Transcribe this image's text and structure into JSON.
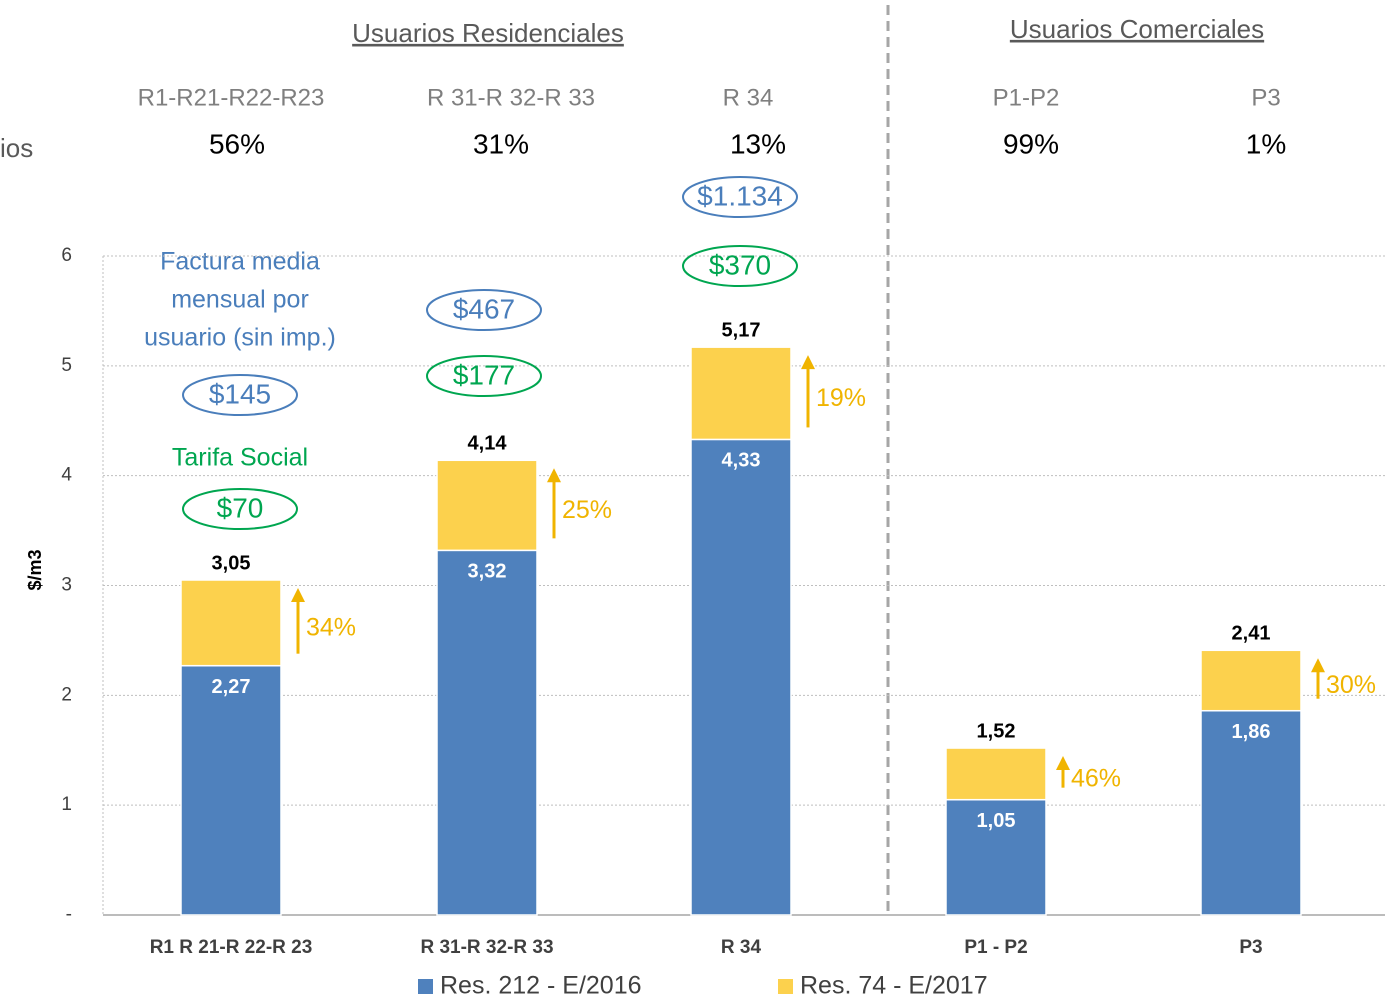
{
  "chart_data": {
    "type": "stacked_bar",
    "group_titles": [
      "Usuarios Residenciales",
      "Usuarios Comerciales"
    ],
    "side_label": "ios",
    "subgroups": [
      "R1-R21-R22-R23",
      "R 31-R 32-R 33",
      "R 34",
      "P1-P2",
      "P3"
    ],
    "shares": [
      "56%",
      "31%",
      "13%",
      "99%",
      "1%"
    ],
    "invoice_title": [
      "Factura media",
      "mensual por",
      "usuario (sin imp.)"
    ],
    "invoice_labels": [
      "$145",
      "$467",
      "$1.134"
    ],
    "social_title": "Tarifa Social",
    "social_labels": [
      "$70",
      "$177",
      "$370"
    ],
    "categories": [
      "R1 R 21-R 22-R 23",
      "R 31-R 32-R 33",
      "R 34",
      "P1 - P2",
      "P3"
    ],
    "series": [
      {
        "name": "Res. 212 - E/2016",
        "color": "#4f81bd",
        "values": [
          2.27,
          3.32,
          4.33,
          1.05,
          1.86
        ],
        "value_labels": [
          "2,27",
          "3,32",
          "4,33",
          "1,05",
          "1,86"
        ]
      },
      {
        "name": "Res. 74 - E/2017",
        "color": "#fcd14d",
        "values": [
          0.78,
          0.82,
          0.84,
          0.47,
          0.55
        ]
      }
    ],
    "totals": [
      3.05,
      4.14,
      5.17,
      1.52,
      2.41
    ],
    "total_labels": [
      "3,05",
      "4,14",
      "5,17",
      "1,52",
      "2,41"
    ],
    "change_labels": [
      "34%",
      "25%",
      "19%",
      "46%",
      "30%"
    ],
    "ylabel": "$/m3",
    "ylim": [
      0,
      6
    ],
    "yticks": [
      {
        "value": 0,
        "label": "-"
      },
      1,
      2,
      3,
      4,
      5,
      6
    ],
    "grid": true
  }
}
